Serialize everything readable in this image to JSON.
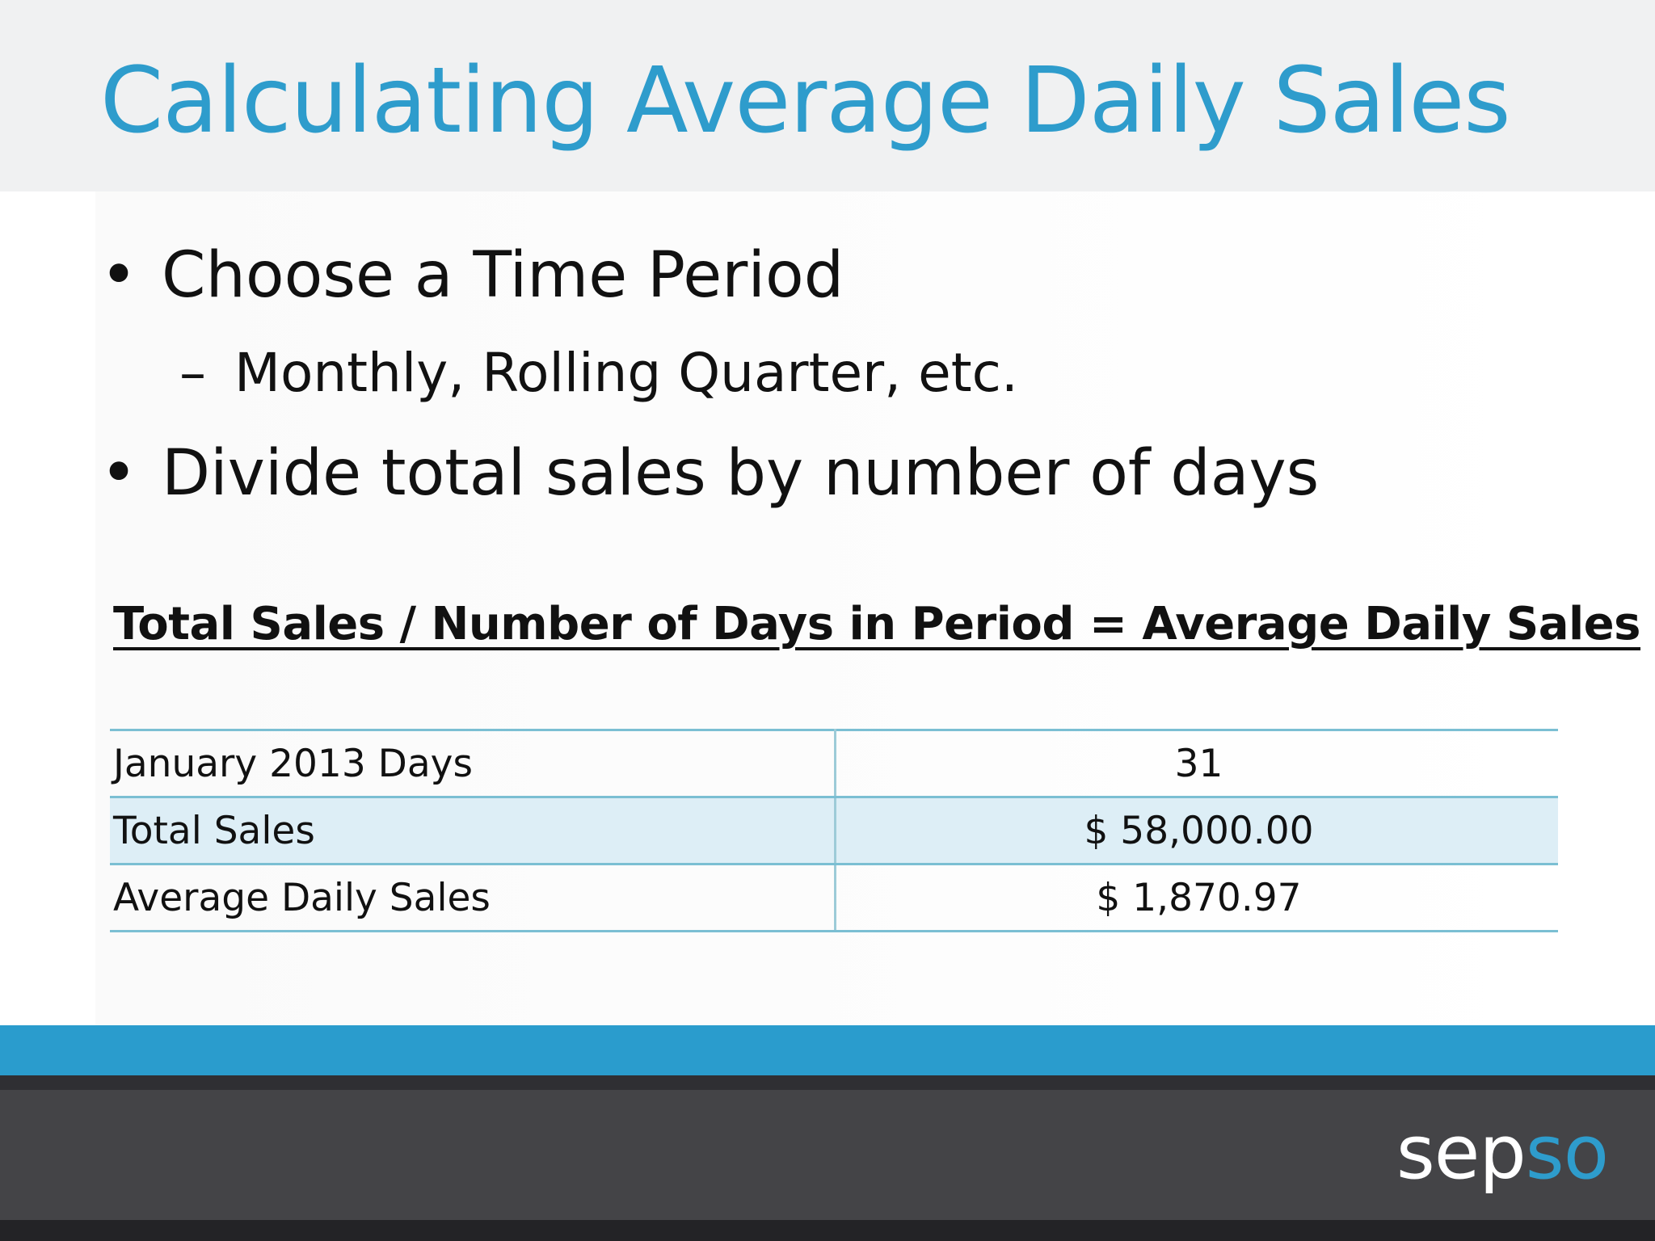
{
  "slide": {
    "title": "Calculating Average Daily Sales",
    "bullets": [
      {
        "marker": "•",
        "text": "Choose a Time Period"
      },
      {
        "marker": "•",
        "text": "Divide total sales by number of days"
      }
    ],
    "sub_bullet": {
      "marker": "–",
      "text": "Monthly, Rolling Quarter, etc."
    },
    "formula": "Total Sales / Number of Days in Period = Average Daily Sales",
    "table": {
      "rows": [
        {
          "label": "January 2013 Days",
          "value": "31"
        },
        {
          "label": "Total Sales",
          "value": "$ 58,000.00"
        },
        {
          "label": "Average Daily Sales",
          "value": "$ 1,870.97"
        }
      ]
    },
    "logo": {
      "part1": "sep",
      "part2": "so"
    }
  },
  "colors": {
    "accent": "#2e9ccc",
    "title_band": "#f0f1f2",
    "footer": "#444447",
    "table_shade": "#ddeef6",
    "table_rule": "#7bbfd3"
  }
}
